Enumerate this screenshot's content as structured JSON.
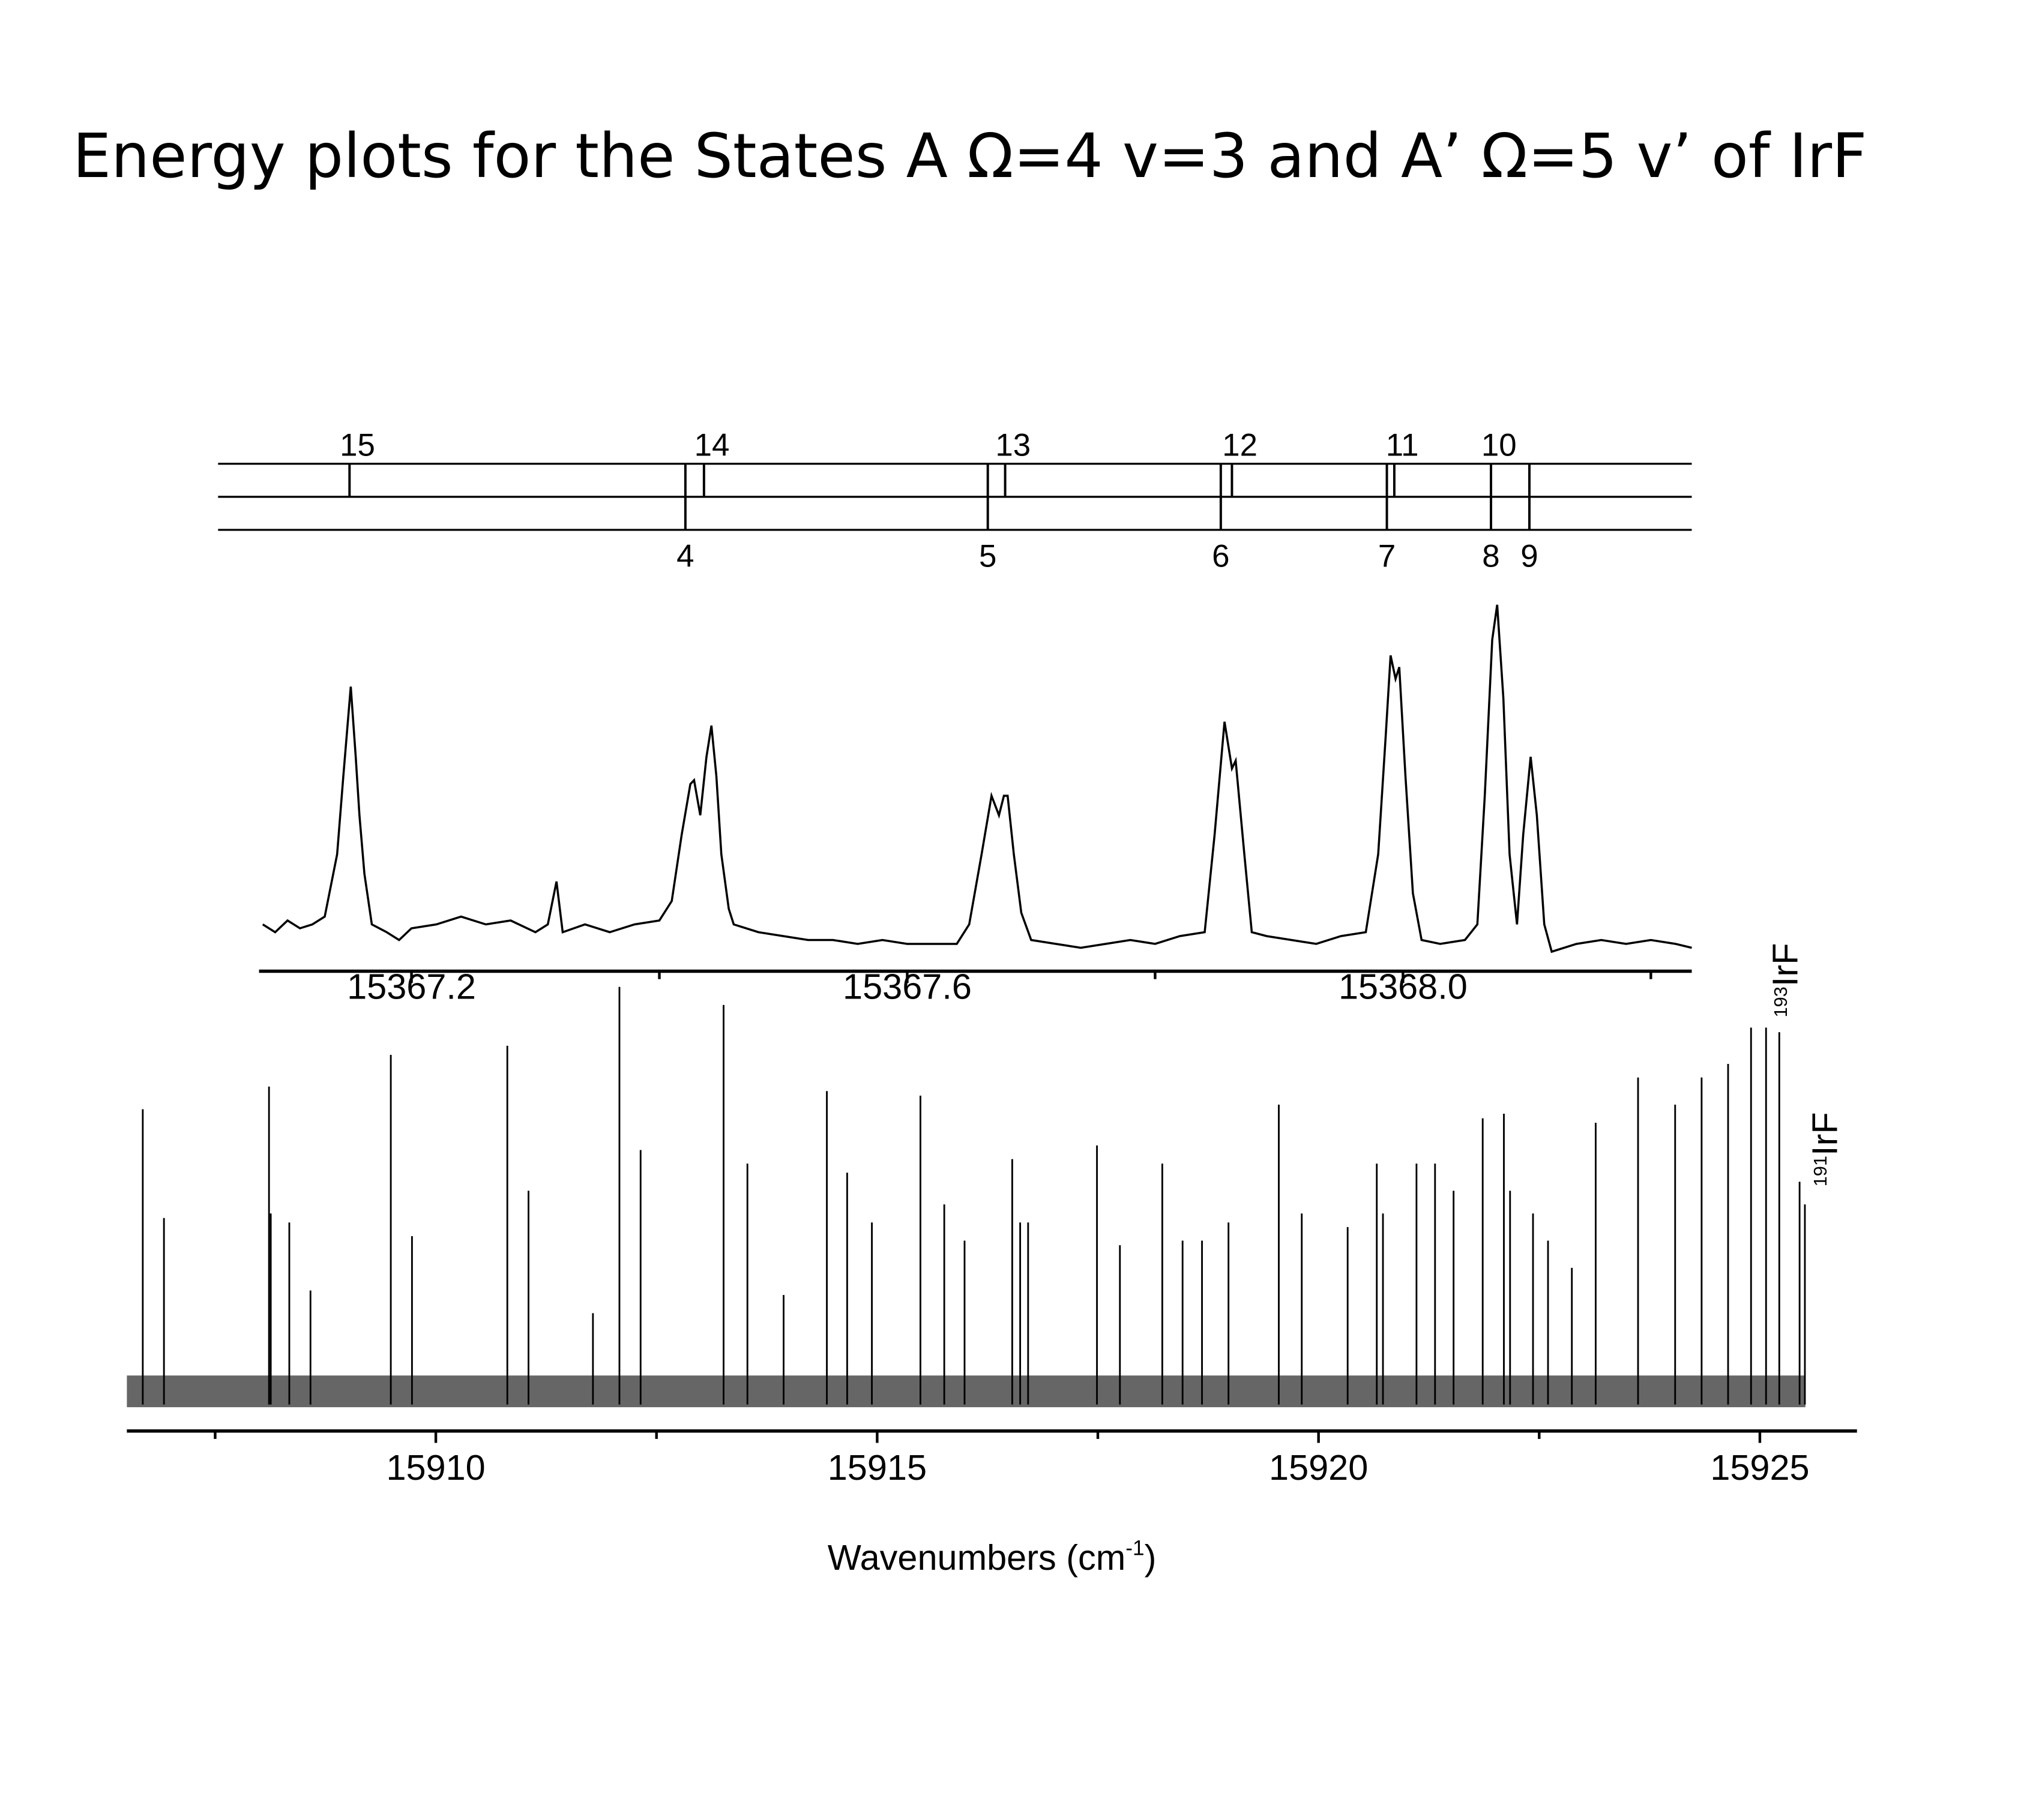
{
  "title": "Energy plots for the States A Ω=4 v=3 and A’ Ω=5 v’ of IrF",
  "chart_data": [
    {
      "type": "line",
      "color": "#000000",
      "x": [
        15367.08,
        15367.09,
        15367.1,
        15367.11,
        15367.12,
        15367.13,
        15367.14,
        15367.145,
        15367.151,
        15367.155,
        15367.158,
        15367.162,
        15367.168,
        15367.18,
        15367.19,
        15367.2,
        15367.22,
        15367.24,
        15367.26,
        15367.28,
        15367.3,
        15367.31,
        15367.317,
        15367.322,
        15367.34,
        15367.36,
        15367.38,
        15367.4,
        15367.41,
        15367.418,
        15367.425,
        15367.428,
        15367.433,
        15367.438,
        15367.442,
        15367.446,
        15367.45,
        15367.456,
        15367.46,
        15367.48,
        15367.5,
        15367.52,
        15367.54,
        15367.56,
        15367.58,
        15367.6,
        15367.62,
        15367.64,
        15367.65,
        15367.66,
        15367.668,
        15367.674,
        15367.678,
        15367.681,
        15367.686,
        15367.692,
        15367.7,
        15367.72,
        15367.74,
        15367.76,
        15367.78,
        15367.8,
        15367.82,
        15367.84,
        15367.848,
        15367.856,
        15367.862,
        15367.865,
        15367.872,
        15367.878,
        15367.89,
        15367.91,
        15367.93,
        15367.95,
        15367.97,
        15367.98,
        15367.986,
        15367.99,
        15367.994,
        15367.997,
        15368.002,
        15368.008,
        15368.015,
        15368.03,
        15368.05,
        15368.06,
        15368.066,
        15368.072,
        15368.076,
        15368.081,
        15368.086,
        15368.092,
        15368.097,
        15368.103,
        15368.108,
        15368.114,
        15368.12,
        15368.14,
        15368.16,
        15368.18,
        15368.2,
        15368.22,
        15368.233
      ],
      "values": [
        0.12,
        0.1,
        0.13,
        0.11,
        0.12,
        0.14,
        0.3,
        0.5,
        0.73,
        0.55,
        0.4,
        0.25,
        0.12,
        0.1,
        0.08,
        0.11,
        0.12,
        0.14,
        0.12,
        0.13,
        0.1,
        0.12,
        0.23,
        0.1,
        0.12,
        0.1,
        0.12,
        0.13,
        0.18,
        0.35,
        0.48,
        0.49,
        0.4,
        0.55,
        0.63,
        0.5,
        0.3,
        0.16,
        0.12,
        0.1,
        0.09,
        0.08,
        0.08,
        0.07,
        0.08,
        0.07,
        0.07,
        0.07,
        0.12,
        0.3,
        0.45,
        0.4,
        0.45,
        0.45,
        0.3,
        0.15,
        0.08,
        0.07,
        0.06,
        0.07,
        0.08,
        0.07,
        0.09,
        0.1,
        0.35,
        0.64,
        0.52,
        0.54,
        0.3,
        0.1,
        0.09,
        0.08,
        0.07,
        0.09,
        0.1,
        0.3,
        0.6,
        0.81,
        0.75,
        0.78,
        0.5,
        0.2,
        0.08,
        0.07,
        0.08,
        0.12,
        0.45,
        0.85,
        0.94,
        0.7,
        0.3,
        0.12,
        0.35,
        0.55,
        0.4,
        0.12,
        0.05,
        0.07,
        0.08,
        0.07,
        0.08,
        0.07,
        0.06
      ],
      "xlim": [
        15367.077,
        15368.233
      ],
      "ylim": [
        0,
        1
      ],
      "xticks": [
        15367.2,
        15367.6,
        {
          "value": 15368.0,
          "label": "15368.0"
        }
      ],
      "minor_xticks": [
        15367.4,
        15367.8,
        15368.2
      ],
      "upper_branch": {
        "labels": [
          "15",
          "14",
          "13",
          "12",
          "11",
          "10"
        ],
        "x": [
          15367.15,
          15367.436,
          15367.679,
          15367.862,
          15367.993,
          15368.071
        ]
      },
      "lower_branch": {
        "labels": [
          "4",
          "5",
          "6",
          "7",
          "8",
          "9"
        ],
        "x": [
          15367.421,
          15367.665,
          15367.853,
          15367.987,
          15368.071,
          15368.102
        ]
      }
    },
    {
      "type": "stick",
      "color": "#000000",
      "x": [
        15906.68,
        15906.92,
        15908.11,
        15908.13,
        15908.34,
        15908.58,
        15909.49,
        15909.73,
        15910.81,
        15911.05,
        15911.78,
        15912.08,
        15912.32,
        15913.26,
        15913.53,
        15913.94,
        15914.43,
        15914.66,
        15914.94,
        15915.49,
        15915.76,
        15915.99,
        15916.53,
        15916.62,
        15916.71,
        15917.49,
        15917.75,
        15918.23,
        15918.46,
        15918.68,
        15918.98,
        15919.55,
        15919.81,
        15920.33,
        15920.66,
        15920.73,
        15921.11,
        15921.32,
        15921.53,
        15921.86,
        15922.1,
        15922.17,
        15922.43,
        15922.6,
        15922.87,
        15923.14,
        15923.62,
        15924.04,
        15924.34,
        15924.64,
        15924.9,
        15925.07,
        15925.22,
        15925.45,
        15925.51
      ],
      "values": [
        0.71,
        0.47,
        0.76,
        0.48,
        0.46,
        0.31,
        0.83,
        0.43,
        0.85,
        0.53,
        0.26,
        0.98,
        0.62,
        0.94,
        0.59,
        0.3,
        0.75,
        0.57,
        0.46,
        0.74,
        0.5,
        0.42,
        0.6,
        0.46,
        0.46,
        0.63,
        0.41,
        0.59,
        0.42,
        0.42,
        0.46,
        0.72,
        0.48,
        0.45,
        0.59,
        0.48,
        0.59,
        0.59,
        0.53,
        0.69,
        0.7,
        0.53,
        0.48,
        0.42,
        0.36,
        0.68,
        0.78,
        0.72,
        0.78,
        0.81,
        0.89,
        0.89,
        0.88,
        0.55,
        0.5
      ],
      "xlim": [
        15906.5,
        15926.1
      ],
      "ylim": [
        0,
        1
      ],
      "xticks": [
        15910,
        15915,
        15920,
        15925
      ],
      "minor_xticks": [
        15907.5,
        15912.5,
        15917.5,
        15922.5
      ],
      "xlabel": {
        "text": "Wavenumbers (cm",
        "sup": "-1",
        "end": ")"
      },
      "annotations": [
        {
          "sup": "193",
          "text": "IrF"
        },
        {
          "sup": "191",
          "text": "IrF"
        }
      ]
    }
  ]
}
